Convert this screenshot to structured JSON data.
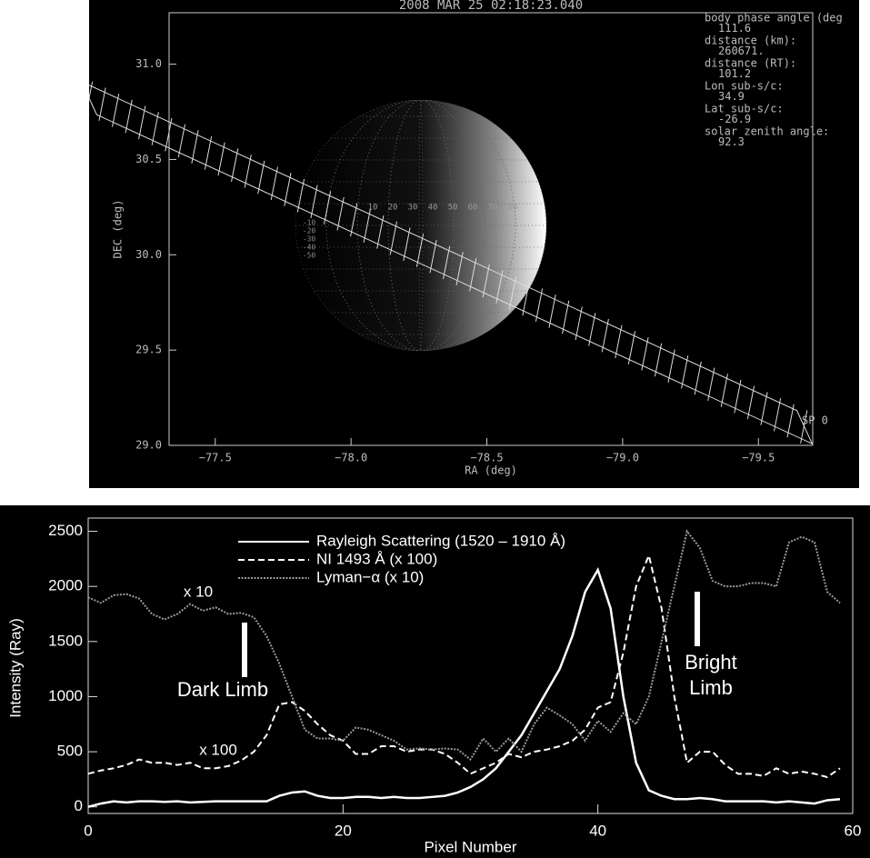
{
  "chart_data": [
    {
      "type": "map",
      "title": "2008 MAR 25 02:18:23.040",
      "x_label": "RA (deg)",
      "y_label": "DEC (deg)",
      "xlim": [
        -77.33,
        -79.7
      ],
      "ylim": [
        29.0,
        31.27
      ],
      "xticks": [
        {
          "value": -77.5,
          "label": "−77.5"
        },
        {
          "value": -78.0,
          "label": "−78.0"
        },
        {
          "value": -78.5,
          "label": "−78.5"
        },
        {
          "value": -79.0,
          "label": "−79.0"
        },
        {
          "value": -79.5,
          "label": "−79.5"
        }
      ],
      "yticks": [
        {
          "value": 29.0,
          "label": "29.0"
        },
        29.5,
        {
          "value": 30.0,
          "label": "30.0"
        },
        30.5,
        {
          "value": 31.0,
          "label": "31.0"
        }
      ],
      "info": [
        "body phase angle (deg",
        "111.6",
        "distance (km):",
        "260671.",
        "distance (RT):",
        "101.2",
        "Lon sub-s/c:",
        "34.9",
        "Lat sub-s/c:",
        "-26.9",
        "solar zenith angle:",
        "92.3"
      ],
      "lon_labels": [
        "10",
        "20",
        "30",
        "40",
        "50",
        "60",
        "70",
        "80"
      ],
      "lat_labels": [
        "-10",
        "-20",
        "-30",
        "-40",
        "-50"
      ],
      "slit_label": "SP 0"
    },
    {
      "type": "line",
      "x_label": "Pixel Number",
      "y_label": "Intensity (Ray)",
      "xlim": [
        0,
        60
      ],
      "ylim": [
        -60,
        2620
      ],
      "xticks": [
        0,
        20,
        40,
        60
      ],
      "yticks": [
        0,
        500,
        1000,
        1500,
        2000,
        2500
      ],
      "annotations": [
        "x 10",
        "x 100",
        "Dark Limb",
        "Bright",
        "Limb"
      ],
      "series": [
        {
          "name": "Rayleigh Scattering (1520 – 1910 Å)",
          "color": "#ffffff",
          "dash": "solid",
          "values": [
            0,
            30,
            50,
            40,
            50,
            50,
            45,
            50,
            40,
            45,
            50,
            50,
            50,
            50,
            50,
            100,
            130,
            140,
            100,
            80,
            80,
            90,
            90,
            80,
            90,
            80,
            80,
            90,
            100,
            130,
            180,
            250,
            350,
            500,
            650,
            850,
            1050,
            1250,
            1550,
            1950,
            2150,
            1800,
            1000,
            400,
            150,
            100,
            70,
            70,
            80,
            70,
            50,
            50,
            50,
            50,
            40,
            50,
            40,
            30,
            60,
            70
          ]
        },
        {
          "name": "NI 1493 Å (x 100)",
          "color": "#ffffff",
          "dash": "dashed",
          "values": [
            300,
            330,
            350,
            380,
            430,
            400,
            400,
            380,
            400,
            350,
            350,
            370,
            420,
            500,
            650,
            930,
            950,
            870,
            750,
            650,
            600,
            480,
            480,
            550,
            550,
            500,
            520,
            520,
            480,
            400,
            300,
            350,
            400,
            480,
            450,
            500,
            520,
            550,
            600,
            700,
            900,
            950,
            1400,
            2000,
            2280,
            1800,
            1000,
            400,
            500,
            500,
            380,
            300,
            300,
            280,
            350,
            300,
            320,
            300,
            270,
            350
          ]
        },
        {
          "name": "Lyman−α (x 10)",
          "color": "#9a9a9a",
          "dash": "dotted",
          "values": [
            1900,
            1850,
            1920,
            1930,
            1890,
            1750,
            1700,
            1750,
            1840,
            1780,
            1810,
            1750,
            1760,
            1720,
            1550,
            1300,
            1000,
            700,
            620,
            620,
            600,
            720,
            700,
            650,
            600,
            520,
            530,
            520,
            530,
            520,
            430,
            620,
            500,
            620,
            500,
            750,
            900,
            830,
            750,
            600,
            780,
            680,
            850,
            750,
            1000,
            1500,
            2000,
            2500,
            2350,
            2050,
            2000,
            2000,
            2030,
            2030,
            2000,
            2400,
            2450,
            2400,
            1950,
            1850
          ]
        }
      ]
    }
  ]
}
